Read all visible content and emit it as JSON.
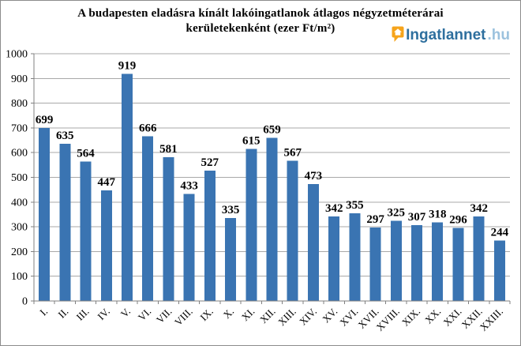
{
  "title": {
    "line1": "A budapesten eladásra kínált lakóingatlanok átlagos négyzetméterárai",
    "line2": "kerületekenként (ezer Ft/m²)"
  },
  "logo": {
    "brand": "Ingatlannet",
    "tld": ".hu",
    "icon": "house-pin-icon",
    "icon_color": "#F6A41B",
    "brand_color": "#2E6F9E",
    "tld_color": "#9CC2DE"
  },
  "chart_data": {
    "type": "bar",
    "title": "A budapesten eladásra kínált lakóingatlanok átlagos négyzetméterárai kerületekenként (ezer Ft/m²)",
    "categories": [
      "I.",
      "II.",
      "III.",
      "IV.",
      "V.",
      "VI.",
      "VII.",
      "VIII.",
      "IX.",
      "X.",
      "XI.",
      "XII.",
      "XIII.",
      "XIV.",
      "XV.",
      "XVI.",
      "XVII.",
      "XVIII.",
      "XIX.",
      "XX.",
      "XXI.",
      "XXII.",
      "XXIII."
    ],
    "values": [
      699,
      635,
      564,
      447,
      919,
      666,
      581,
      433,
      527,
      335,
      615,
      659,
      567,
      473,
      342,
      355,
      297,
      325,
      307,
      318,
      296,
      342,
      244
    ],
    "xlabel": "",
    "ylabel": "",
    "ylim": [
      0,
      1000
    ],
    "ytick_step": 100,
    "grid": true,
    "legend": "none",
    "data_labels": true,
    "bar_color": "#3A74B2",
    "gridline_color": "#a9a9a9",
    "axis_color": "#808080"
  }
}
